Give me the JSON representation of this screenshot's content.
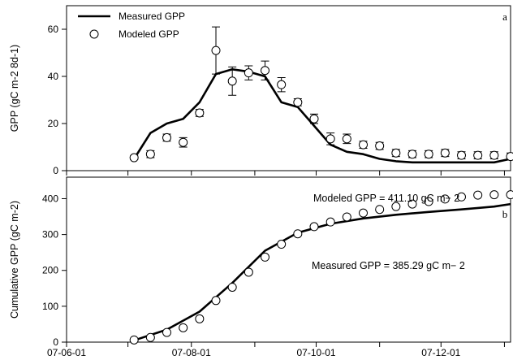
{
  "chart_data": [
    {
      "panel_label": "a",
      "type": "line",
      "ylabel": "GPP (gC m-2 8d-1)",
      "ylim": [
        0,
        70
      ],
      "yticks": [
        0,
        20,
        40,
        60
      ],
      "xlim": [
        "2001-06-01",
        "2002-01-04"
      ],
      "xtick_values": [
        "2001-06-01",
        "2001-07-01",
        "2001-08-01",
        "2001-09-01",
        "2001-10-01",
        "2001-11-01",
        "2001-12-01",
        "2002-01-01"
      ],
      "xtick_labels": [
        "",
        "",
        "",
        "",
        "",
        "",
        "",
        ""
      ],
      "legend": {
        "placement": "top-left",
        "entries": [
          "Measured GPP",
          "Modeled GPP"
        ]
      },
      "series": [
        {
          "name": "Measured GPP",
          "kind": "line",
          "x": [
            "2001-07-04",
            "2001-07-12",
            "2001-07-20",
            "2001-07-28",
            "2001-08-05",
            "2001-08-13",
            "2001-08-21",
            "2001-08-29",
            "2001-09-06",
            "2001-09-14",
            "2001-09-22",
            "2001-09-30",
            "2001-10-08",
            "2001-10-16",
            "2001-10-24",
            "2001-11-01",
            "2001-11-09",
            "2001-11-17",
            "2001-11-25",
            "2001-12-03",
            "2001-12-11",
            "2001-12-19",
            "2001-12-27",
            "2002-01-04"
          ],
          "y": [
            5,
            16,
            20,
            22,
            29,
            41,
            43,
            42,
            40,
            29,
            27,
            19,
            11,
            8,
            7,
            5,
            4,
            3.5,
            3.5,
            3.5,
            3.5,
            3.5,
            3.5,
            5
          ]
        },
        {
          "name": "Modeled GPP",
          "kind": "scatter",
          "x": [
            "2001-07-04",
            "2001-07-12",
            "2001-07-20",
            "2001-07-28",
            "2001-08-05",
            "2001-08-13",
            "2001-08-21",
            "2001-08-29",
            "2001-09-06",
            "2001-09-14",
            "2001-09-22",
            "2001-09-30",
            "2001-10-08",
            "2001-10-16",
            "2001-10-24",
            "2001-11-01",
            "2001-11-09",
            "2001-11-17",
            "2001-11-25",
            "2001-12-03",
            "2001-12-11",
            "2001-12-19",
            "2001-12-27",
            "2002-01-04"
          ],
          "y": [
            5.5,
            7,
            14,
            12,
            24.5,
            51,
            38,
            41.5,
            42.5,
            36.5,
            29,
            22,
            13.5,
            13.5,
            11,
            10.5,
            7.5,
            7,
            7,
            7.5,
            6.5,
            6.5,
            6.5,
            6
          ],
          "err": [
            0.8,
            1.5,
            1.5,
            2,
            1.5,
            10,
            6,
            3,
            4,
            3,
            1.5,
            2,
            2.5,
            2,
            1.5,
            1.5,
            1.5,
            1.5,
            1.5,
            1.5,
            1.5,
            1.5,
            1.5,
            1.5
          ]
        }
      ]
    },
    {
      "panel_label": "b",
      "type": "line",
      "ylabel": "Cumulative GPP (gC m-2)",
      "ylim": [
        0,
        460
      ],
      "yticks": [
        0,
        100,
        200,
        300,
        400
      ],
      "xlim": [
        "2001-06-01",
        "2002-01-04"
      ],
      "xtick_values": [
        "2001-06-01",
        "2001-07-01",
        "2001-08-01",
        "2001-09-01",
        "2001-10-01",
        "2001-11-01",
        "2001-12-01",
        "2002-01-01"
      ],
      "xtick_labels": [
        "07-06-01",
        "",
        "07-08-01",
        "",
        "07-10-01",
        "",
        "07-12-01",
        ""
      ],
      "annotations": [
        "Modeled GPP = 411.10  gC m− 2",
        "Measured  GPP = 385.29  gC m− 2"
      ],
      "series": [
        {
          "name": "Measured GPP",
          "kind": "line",
          "x": [
            "2001-07-04",
            "2001-07-20",
            "2001-08-05",
            "2001-08-21",
            "2001-09-06",
            "2001-09-22",
            "2001-10-08",
            "2001-10-24",
            "2001-11-09",
            "2001-11-25",
            "2001-12-11",
            "2001-12-27",
            "2002-01-04"
          ],
          "y": [
            5,
            35,
            85,
            165,
            255,
            305,
            330,
            345,
            355,
            363,
            370,
            378,
            385
          ]
        },
        {
          "name": "Modeled GPP",
          "kind": "scatter",
          "x": [
            "2001-07-04",
            "2001-07-12",
            "2001-07-20",
            "2001-07-28",
            "2001-08-05",
            "2001-08-13",
            "2001-08-21",
            "2001-08-29",
            "2001-09-06",
            "2001-09-14",
            "2001-09-22",
            "2001-09-30",
            "2001-10-08",
            "2001-10-16",
            "2001-10-24",
            "2001-11-01",
            "2001-11-09",
            "2001-11-17",
            "2001-11-25",
            "2001-12-03",
            "2001-12-11",
            "2001-12-19",
            "2001-12-27",
            "2002-01-04"
          ],
          "y": [
            6,
            13,
            27,
            40,
            65,
            116,
            153,
            195,
            237,
            273,
            302,
            322,
            335,
            349,
            360,
            370,
            378,
            385,
            392,
            399,
            405,
            410,
            411,
            411
          ]
        }
      ]
    }
  ]
}
